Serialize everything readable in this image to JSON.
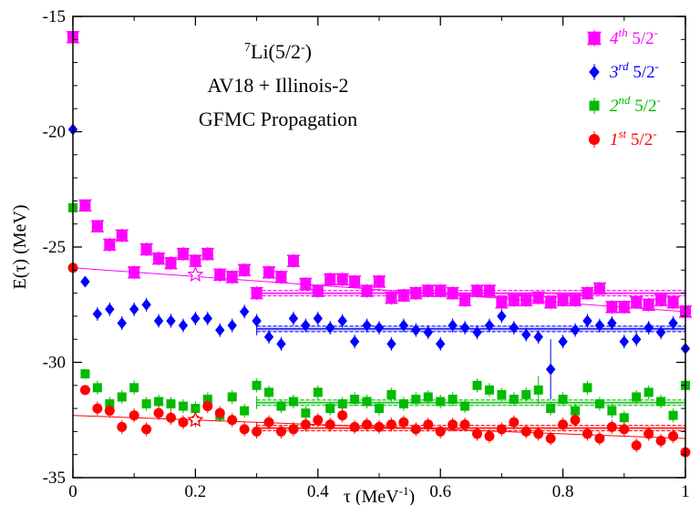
{
  "chart_data": {
    "type": "scatter",
    "xlabel": "τ (MeV⁻¹)",
    "ylabel": "E(τ)  (MeV)",
    "xlim": [
      0,
      1
    ],
    "ylim": [
      -35,
      -15
    ],
    "xticks": [
      0,
      0.2,
      0.4,
      0.6,
      0.8,
      1
    ],
    "xtick_labels": [
      "0",
      "0.2",
      "0.4",
      "0.6",
      "0.8",
      "1"
    ],
    "yticks": [
      -35,
      -30,
      -25,
      -20,
      -15
    ],
    "ytick_labels": [
      "-35",
      "-30",
      "-25",
      "-20",
      "-15"
    ],
    "grid": false,
    "legend_position": "top-right",
    "annotation": {
      "line1_sup": "7",
      "line1_main": "Li(5/2",
      "line1_sup2": "-",
      "line1_end": ")",
      "line2": "AV18 + Illinois-2",
      "line3": "GFMC Propagation"
    },
    "series": [
      {
        "name": "4th 5/2-",
        "legend": {
          "ord": "4",
          "sup": "th",
          "rest": " 5/2",
          "sign": "-"
        },
        "color": "#ff00ff",
        "marker": "star",
        "x": [
          0,
          0.02,
          0.04,
          0.06,
          0.08,
          0.1,
          0.12,
          0.14,
          0.16,
          0.18,
          0.2,
          0.22,
          0.24,
          0.26,
          0.28,
          0.3,
          0.32,
          0.34,
          0.36,
          0.38,
          0.4,
          0.42,
          0.44,
          0.46,
          0.48,
          0.5,
          0.52,
          0.54,
          0.56,
          0.58,
          0.6,
          0.62,
          0.64,
          0.66,
          0.68,
          0.7,
          0.72,
          0.74,
          0.76,
          0.78,
          0.8,
          0.82,
          0.84,
          0.86,
          0.88,
          0.9,
          0.92,
          0.94,
          0.96,
          0.98,
          1.0
        ],
        "y": [
          -15.9,
          -23.2,
          -24.1,
          -24.9,
          -24.5,
          -26.1,
          -25.1,
          -25.5,
          -25.7,
          -25.3,
          -25.6,
          -25.3,
          -26.2,
          -26.3,
          -26.0,
          -27.0,
          -26.1,
          -26.3,
          -25.6,
          -26.6,
          -26.9,
          -26.4,
          -26.4,
          -26.5,
          -26.9,
          -26.5,
          -27.2,
          -27.1,
          -27.0,
          -26.9,
          -26.9,
          -27.0,
          -27.3,
          -26.9,
          -26.9,
          -27.4,
          -27.3,
          -27.3,
          -27.2,
          -27.4,
          -27.3,
          -27.3,
          -27.0,
          -26.8,
          -27.6,
          -27.6,
          -27.4,
          -27.5,
          -27.3,
          -27.4,
          -27.8
        ],
        "err": [
          0.2,
          0.2,
          0.2,
          0.3,
          0.3,
          0.3,
          0.3,
          0.3,
          0.3,
          0.3,
          0.3,
          0.3,
          0.3,
          0.3,
          0.3,
          0.3,
          0.3,
          0.3,
          0.3,
          0.3,
          0.3,
          0.3,
          0.3,
          0.3,
          0.3,
          0.3,
          0.3,
          0.3,
          0.3,
          0.3,
          0.3,
          0.3,
          0.3,
          0.3,
          0.3,
          0.3,
          0.3,
          0.3,
          0.3,
          0.3,
          0.3,
          0.3,
          0.3,
          0.3,
          0.3,
          0.3,
          0.3,
          0.3,
          0.3,
          0.3,
          0.3
        ],
        "fit_line": [
          [
            0,
            -25.9
          ],
          [
            1,
            -27.8
          ]
        ],
        "plateau": {
          "x": [
            0.3,
            1.0
          ],
          "y": -27.0,
          "band": 0.12
        },
        "highlight": {
          "x": 0.2,
          "y": -26.2
        }
      },
      {
        "name": "3rd 5/2-",
        "legend": {
          "ord": "3",
          "sup": "rd",
          "rest": " 5/2",
          "sign": "-"
        },
        "color": "#0000ff",
        "marker": "diamond",
        "x": [
          0,
          0.02,
          0.04,
          0.06,
          0.08,
          0.1,
          0.12,
          0.14,
          0.16,
          0.18,
          0.2,
          0.22,
          0.24,
          0.26,
          0.28,
          0.3,
          0.32,
          0.34,
          0.36,
          0.38,
          0.4,
          0.42,
          0.44,
          0.46,
          0.48,
          0.5,
          0.52,
          0.54,
          0.56,
          0.58,
          0.6,
          0.62,
          0.64,
          0.66,
          0.68,
          0.7,
          0.72,
          0.74,
          0.76,
          0.78,
          0.8,
          0.82,
          0.84,
          0.86,
          0.88,
          0.9,
          0.92,
          0.94,
          0.96,
          0.98,
          1.0
        ],
        "y": [
          -19.9,
          -26.5,
          -27.9,
          -27.7,
          -28.3,
          -27.7,
          -27.5,
          -28.2,
          -28.2,
          -28.4,
          -28.1,
          -28.1,
          -28.6,
          -28.4,
          -27.8,
          -28.2,
          -28.9,
          -29.2,
          -28.1,
          -28.4,
          -28.1,
          -28.5,
          -28.2,
          -29.1,
          -28.4,
          -28.5,
          -29.2,
          -28.4,
          -28.6,
          -28.7,
          -29.2,
          -28.4,
          -28.5,
          -28.7,
          -28.4,
          -28.0,
          -28.5,
          -28.8,
          -28.9,
          -30.3,
          -29.1,
          -28.6,
          -28.2,
          -28.4,
          -28.3,
          -29.1,
          -29.0,
          -28.5,
          -28.7,
          -28.3,
          -29.4
        ],
        "err": [
          0.2,
          0.2,
          0.3,
          0.3,
          0.3,
          0.3,
          0.3,
          0.3,
          0.3,
          0.3,
          0.3,
          0.3,
          0.3,
          0.3,
          0.3,
          0.3,
          0.3,
          0.3,
          0.3,
          0.3,
          0.3,
          0.3,
          0.3,
          0.3,
          0.3,
          0.3,
          0.3,
          0.3,
          0.3,
          0.3,
          0.3,
          0.3,
          0.3,
          0.3,
          0.3,
          0.3,
          0.3,
          0.3,
          0.3,
          1.3,
          0.3,
          0.3,
          0.3,
          0.3,
          0.3,
          0.3,
          0.3,
          0.3,
          0.3,
          0.3,
          0.3
        ],
        "plateau": {
          "x": [
            0.3,
            1.0
          ],
          "y": -28.55,
          "band": 0.12
        }
      },
      {
        "name": "2nd 5/2-",
        "legend": {
          "ord": "2",
          "sup": "nd",
          "rest": " 5/2",
          "sign": "-"
        },
        "color": "#00bb00",
        "marker": "square",
        "x": [
          0,
          0.02,
          0.04,
          0.06,
          0.08,
          0.1,
          0.12,
          0.14,
          0.16,
          0.18,
          0.2,
          0.22,
          0.24,
          0.26,
          0.28,
          0.3,
          0.32,
          0.34,
          0.36,
          0.38,
          0.4,
          0.42,
          0.44,
          0.46,
          0.48,
          0.5,
          0.52,
          0.54,
          0.56,
          0.58,
          0.6,
          0.62,
          0.64,
          0.66,
          0.68,
          0.7,
          0.72,
          0.74,
          0.76,
          0.78,
          0.8,
          0.82,
          0.84,
          0.86,
          0.88,
          0.9,
          0.92,
          0.94,
          0.96,
          0.98,
          1.0
        ],
        "y": [
          -23.3,
          -30.5,
          -31.1,
          -31.8,
          -31.5,
          -31.1,
          -31.8,
          -31.7,
          -31.8,
          -31.9,
          -32.0,
          -31.6,
          -32.3,
          -31.5,
          -32.1,
          -31.0,
          -31.3,
          -31.9,
          -31.7,
          -32.2,
          -31.3,
          -32.0,
          -31.8,
          -31.6,
          -31.7,
          -32.0,
          -31.4,
          -31.8,
          -31.6,
          -31.5,
          -31.7,
          -31.6,
          -31.9,
          -31.0,
          -31.2,
          -31.4,
          -31.6,
          -31.4,
          -31.2,
          -32.0,
          -31.6,
          -32.1,
          -31.1,
          -31.8,
          -32.1,
          -32.4,
          -31.5,
          -31.3,
          -31.7,
          -32.3,
          -31.0
        ],
        "err": [
          0.2,
          0.2,
          0.3,
          0.3,
          0.3,
          0.3,
          0.3,
          0.3,
          0.3,
          0.3,
          0.3,
          0.3,
          0.3,
          0.3,
          0.3,
          0.3,
          0.3,
          0.3,
          0.3,
          0.3,
          0.3,
          0.3,
          0.3,
          0.3,
          0.3,
          0.3,
          0.3,
          0.3,
          0.3,
          0.3,
          0.3,
          0.3,
          0.3,
          0.3,
          0.3,
          0.3,
          0.3,
          0.3,
          0.6,
          0.3,
          0.3,
          0.3,
          0.3,
          0.3,
          0.3,
          0.3,
          0.3,
          0.3,
          0.3,
          0.3,
          0.3
        ],
        "plateau": {
          "x": [
            0.3,
            1.0
          ],
          "y": -31.75,
          "band": 0.12
        }
      },
      {
        "name": "1st 5/2-",
        "legend": {
          "ord": "1",
          "sup": "st",
          "rest": " 5/2",
          "sign": "-"
        },
        "color": "#ff0000",
        "marker": "circle",
        "x": [
          0,
          0.02,
          0.04,
          0.06,
          0.08,
          0.1,
          0.12,
          0.14,
          0.16,
          0.18,
          0.2,
          0.22,
          0.24,
          0.26,
          0.28,
          0.3,
          0.32,
          0.34,
          0.36,
          0.38,
          0.4,
          0.42,
          0.44,
          0.46,
          0.48,
          0.5,
          0.52,
          0.54,
          0.56,
          0.58,
          0.6,
          0.62,
          0.64,
          0.66,
          0.68,
          0.7,
          0.72,
          0.74,
          0.76,
          0.78,
          0.8,
          0.82,
          0.84,
          0.86,
          0.88,
          0.9,
          0.92,
          0.94,
          0.96,
          0.98,
          1.0
        ],
        "y": [
          -25.9,
          -31.2,
          -32.0,
          -32.1,
          -32.8,
          -32.3,
          -32.9,
          -32.2,
          -32.4,
          -32.6,
          -32.5,
          -31.9,
          -32.2,
          -32.5,
          -32.9,
          -33.0,
          -32.6,
          -33.0,
          -32.9,
          -32.7,
          -32.5,
          -32.7,
          -32.3,
          -32.8,
          -32.7,
          -32.8,
          -32.7,
          -32.6,
          -32.9,
          -32.7,
          -33.0,
          -32.7,
          -32.7,
          -33.1,
          -33.2,
          -32.9,
          -32.6,
          -33.0,
          -33.1,
          -33.3,
          -32.7,
          -32.5,
          -33.1,
          -33.3,
          -32.8,
          -32.9,
          -33.6,
          -33.1,
          -33.4,
          -33.2,
          -33.9
        ],
        "err": [
          0.2,
          0.2,
          0.3,
          0.3,
          0.3,
          0.3,
          0.3,
          0.3,
          0.3,
          0.3,
          0.3,
          0.3,
          0.3,
          0.3,
          0.3,
          0.3,
          0.3,
          0.3,
          0.3,
          0.3,
          0.3,
          0.3,
          0.3,
          0.3,
          0.3,
          0.3,
          0.3,
          0.3,
          0.3,
          0.3,
          0.3,
          0.3,
          0.3,
          0.3,
          0.3,
          0.3,
          0.3,
          0.3,
          0.3,
          0.3,
          0.3,
          0.3,
          0.3,
          0.3,
          0.3,
          0.3,
          0.3,
          0.3,
          0.3,
          0.3,
          0.3
        ],
        "fit_line": [
          [
            0,
            -32.3
          ],
          [
            1,
            -33.3
          ]
        ],
        "plateau": {
          "x": [
            0.3,
            1.0
          ],
          "y": -32.85,
          "band": 0.12
        },
        "highlight": {
          "x": 0.2,
          "y": -32.5
        }
      }
    ]
  }
}
